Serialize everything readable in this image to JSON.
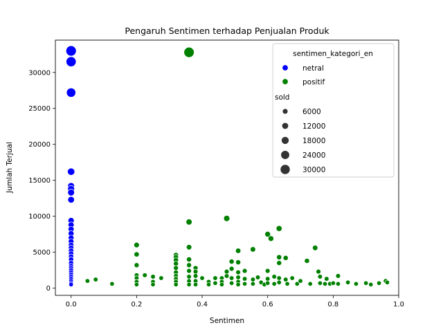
{
  "chart_data": {
    "type": "scatter",
    "title": "Pengaruh Sentimen terhadap Penjualan Produk",
    "xlabel": "Sentimen",
    "ylabel": "Jumlah Terjual",
    "xlim": [
      -0.048,
      1.0
    ],
    "ylim": [
      -1000,
      34500
    ],
    "xticks": [
      0.0,
      0.2,
      0.4,
      0.6,
      0.8,
      1.0
    ],
    "xtick_labels": [
      "0.0",
      "0.2",
      "0.4",
      "0.6",
      "0.8",
      "1.0"
    ],
    "yticks": [
      0,
      5000,
      10000,
      15000,
      20000,
      25000,
      30000
    ],
    "ytick_labels": [
      "0",
      "5000",
      "10000",
      "15000",
      "20000",
      "25000",
      "30000"
    ],
    "grid": false,
    "legend": {
      "placement": "top-right",
      "hue_title": "sentimen_kategori_en",
      "hue_entries": [
        {
          "label": "netral",
          "color": "#0000ff"
        },
        {
          "label": "positif",
          "color": "#008000"
        }
      ],
      "size_title": "sold",
      "size_entries": [
        {
          "label": "6000",
          "value": 6000
        },
        {
          "label": "12000",
          "value": 12000
        },
        {
          "label": "18000",
          "value": 18000
        },
        {
          "label": "24000",
          "value": 24000
        },
        {
          "label": "30000",
          "value": 30000
        }
      ]
    },
    "size_range": {
      "min_value": 400,
      "max_value": 33000
    },
    "series": [
      {
        "name": "netral",
        "color": "#0000ff",
        "points": [
          [
            0,
            33000
          ],
          [
            0,
            31500
          ],
          [
            0,
            27200
          ],
          [
            0,
            16200
          ],
          [
            0,
            14200
          ],
          [
            0,
            13800
          ],
          [
            0,
            13300
          ],
          [
            0,
            12300
          ],
          [
            0,
            9400
          ],
          [
            0,
            8800
          ],
          [
            0,
            8200
          ],
          [
            0,
            7600
          ],
          [
            0,
            7000
          ],
          [
            0,
            6500
          ],
          [
            0,
            6000
          ],
          [
            0,
            5600
          ],
          [
            0,
            5200
          ],
          [
            0,
            4800
          ],
          [
            0,
            4400
          ],
          [
            0,
            4000
          ],
          [
            0,
            3500
          ],
          [
            0,
            3100
          ],
          [
            0,
            2800
          ],
          [
            0,
            2500
          ],
          [
            0,
            2200
          ],
          [
            0,
            1900
          ],
          [
            0,
            1600
          ],
          [
            0,
            1300
          ],
          [
            0,
            1000
          ],
          [
            0,
            700
          ],
          [
            0,
            500
          ]
        ]
      },
      {
        "name": "positif",
        "color": "#008000",
        "points": [
          [
            0.36,
            32800
          ],
          [
            0.36,
            9200
          ],
          [
            0.475,
            9700
          ],
          [
            0.36,
            5700
          ],
          [
            0.36,
            4000
          ],
          [
            0.36,
            3200
          ],
          [
            0.36,
            2400
          ],
          [
            0.36,
            1600
          ],
          [
            0.36,
            1000
          ],
          [
            0.36,
            500
          ],
          [
            0.05,
            1000
          ],
          [
            0.075,
            1200
          ],
          [
            0.125,
            600
          ],
          [
            0.2,
            6000
          ],
          [
            0.2,
            4700
          ],
          [
            0.2,
            3200
          ],
          [
            0.2,
            1800
          ],
          [
            0.2,
            1400
          ],
          [
            0.2,
            900
          ],
          [
            0.2,
            500
          ],
          [
            0.225,
            1800
          ],
          [
            0.25,
            1600
          ],
          [
            0.25,
            900
          ],
          [
            0.25,
            500
          ],
          [
            0.275,
            1400
          ],
          [
            0.32,
            4600
          ],
          [
            0.32,
            4300
          ],
          [
            0.32,
            3900
          ],
          [
            0.32,
            3400
          ],
          [
            0.32,
            2800
          ],
          [
            0.32,
            2200
          ],
          [
            0.32,
            1700
          ],
          [
            0.32,
            1300
          ],
          [
            0.32,
            900
          ],
          [
            0.32,
            500
          ],
          [
            0.38,
            2800
          ],
          [
            0.38,
            2300
          ],
          [
            0.38,
            1700
          ],
          [
            0.38,
            1000
          ],
          [
            0.38,
            500
          ],
          [
            0.4,
            1400
          ],
          [
            0.42,
            900
          ],
          [
            0.42,
            500
          ],
          [
            0.44,
            1400
          ],
          [
            0.44,
            700
          ],
          [
            0.46,
            1400
          ],
          [
            0.46,
            900
          ],
          [
            0.46,
            500
          ],
          [
            0.475,
            1700
          ],
          [
            0.475,
            2300
          ],
          [
            0.49,
            3700
          ],
          [
            0.49,
            2700
          ],
          [
            0.49,
            1400
          ],
          [
            0.49,
            700
          ],
          [
            0.51,
            5200
          ],
          [
            0.51,
            3600
          ],
          [
            0.51,
            2200
          ],
          [
            0.51,
            1500
          ],
          [
            0.51,
            900
          ],
          [
            0.51,
            500
          ],
          [
            0.53,
            2400
          ],
          [
            0.53,
            1300
          ],
          [
            0.53,
            600
          ],
          [
            0.555,
            5400
          ],
          [
            0.555,
            1200
          ],
          [
            0.555,
            600
          ],
          [
            0.57,
            1500
          ],
          [
            0.58,
            800
          ],
          [
            0.59,
            500
          ],
          [
            0.6,
            7500
          ],
          [
            0.61,
            6900
          ],
          [
            0.6,
            2400
          ],
          [
            0.6,
            1300
          ],
          [
            0.6,
            700
          ],
          [
            0.62,
            1600
          ],
          [
            0.62,
            600
          ],
          [
            0.635,
            8300
          ],
          [
            0.635,
            4300
          ],
          [
            0.635,
            3500
          ],
          [
            0.635,
            1400
          ],
          [
            0.635,
            800
          ],
          [
            0.655,
            4200
          ],
          [
            0.655,
            1200
          ],
          [
            0.66,
            600
          ],
          [
            0.675,
            1400
          ],
          [
            0.69,
            600
          ],
          [
            0.7,
            1000
          ],
          [
            0.72,
            3800
          ],
          [
            0.73,
            600
          ],
          [
            0.745,
            5600
          ],
          [
            0.755,
            2300
          ],
          [
            0.76,
            1600
          ],
          [
            0.76,
            700
          ],
          [
            0.775,
            600
          ],
          [
            0.78,
            1300
          ],
          [
            0.79,
            600
          ],
          [
            0.8,
            700
          ],
          [
            0.815,
            1700
          ],
          [
            0.815,
            600
          ],
          [
            0.845,
            800
          ],
          [
            0.87,
            600
          ],
          [
            0.9,
            700
          ],
          [
            0.915,
            500
          ],
          [
            0.94,
            700
          ],
          [
            0.96,
            1000
          ],
          [
            0.965,
            800
          ]
        ]
      }
    ]
  }
}
